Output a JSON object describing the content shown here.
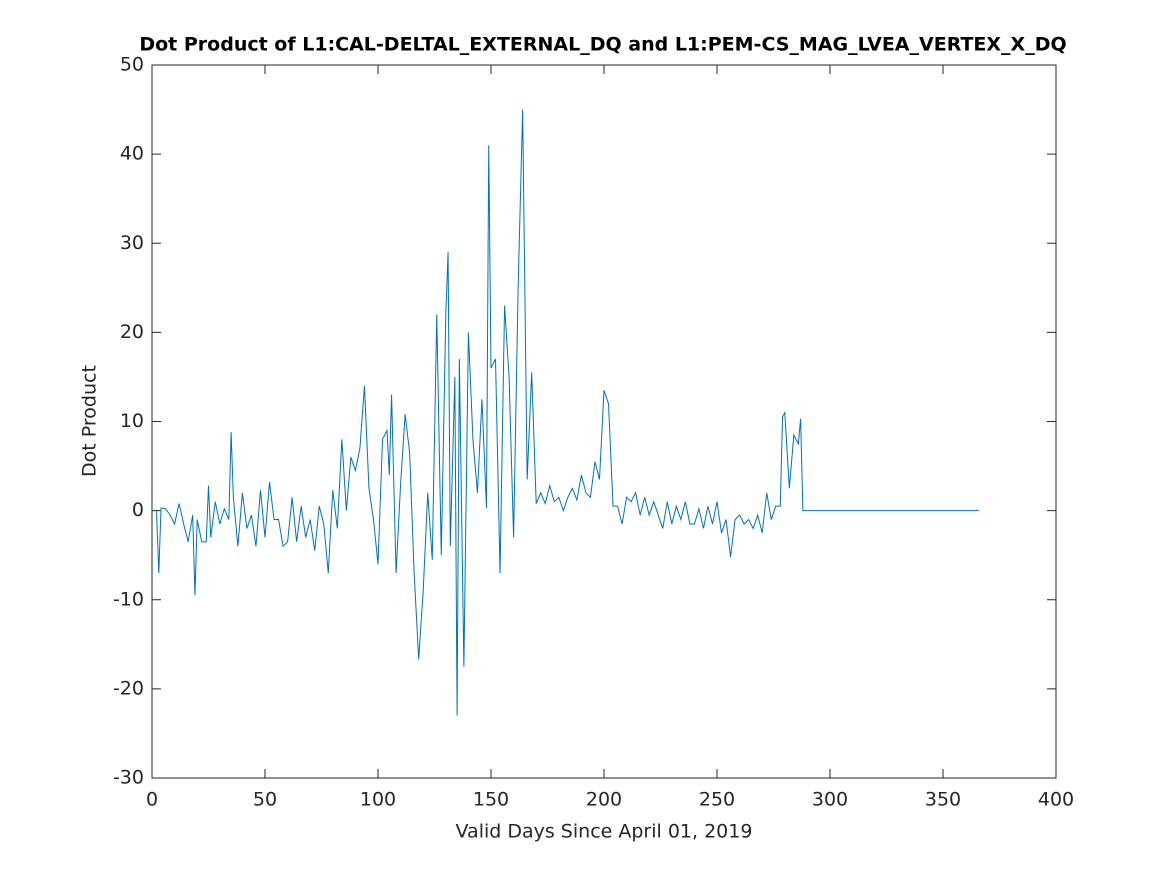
{
  "chart_data": {
    "type": "line",
    "title": "Dot Product of L1:CAL-DELTAL_EXTERNAL_DQ and L1:PEM-CS_MAG_LVEA_VERTEX_X_DQ",
    "xlabel": "Valid Days Since April 01, 2019",
    "ylabel": "Dot Product",
    "xlim": [
      0,
      400
    ],
    "xticks": [
      0,
      50,
      100,
      150,
      200,
      250,
      300,
      350,
      400
    ],
    "ylim": [
      -30,
      50
    ],
    "yticks": [
      -30,
      -20,
      -10,
      0,
      10,
      20,
      30,
      40,
      50
    ],
    "grid": false,
    "series": [
      {
        "color": "#0072bd",
        "x": [
          1,
          2,
          3,
          4,
          6,
          8,
          10,
          12,
          14,
          16,
          18,
          19,
          20,
          22,
          24,
          25,
          26,
          28,
          30,
          32,
          34,
          35,
          36,
          38,
          40,
          42,
          44,
          46,
          48,
          50,
          52,
          54,
          56,
          58,
          60,
          62,
          64,
          66,
          68,
          70,
          72,
          74,
          76,
          78,
          80,
          82,
          84,
          86,
          88,
          90,
          92,
          94,
          96,
          98,
          100,
          102,
          104,
          105,
          106,
          108,
          110,
          112,
          114,
          116,
          118,
          120,
          122,
          124,
          126,
          128,
          130,
          131,
          132,
          134,
          135,
          136,
          138,
          140,
          142,
          144,
          146,
          148,
          149,
          150,
          152,
          154,
          156,
          158,
          160,
          162,
          164,
          166,
          168,
          170,
          172,
          174,
          176,
          178,
          180,
          182,
          184,
          186,
          188,
          190,
          192,
          194,
          196,
          198,
          200,
          202,
          204,
          206,
          208,
          210,
          212,
          214,
          216,
          218,
          220,
          222,
          224,
          226,
          228,
          230,
          232,
          234,
          236,
          238,
          240,
          242,
          244,
          246,
          248,
          250,
          252,
          254,
          256,
          258,
          260,
          262,
          264,
          266,
          268,
          270,
          272,
          274,
          276,
          278,
          279,
          280,
          282,
          284,
          286,
          287,
          288,
          366
        ],
        "values": [
          0,
          0,
          -7,
          0.3,
          0.2,
          -0.5,
          -1.5,
          0.8,
          -1.5,
          -3.5,
          -0.5,
          -9.5,
          -1,
          -3.5,
          -3.5,
          2.8,
          -3,
          1,
          -1.5,
          0.2,
          -1,
          8.8,
          1.5,
          -4,
          2,
          -2,
          -0.5,
          -4,
          2.3,
          -3,
          3.2,
          -1,
          -1,
          -4,
          -3.5,
          1.5,
          -3.5,
          0.5,
          -3,
          -1,
          -4.5,
          0.5,
          -1.5,
          -7,
          2.3,
          -2,
          8,
          0,
          6,
          4.5,
          7,
          14,
          2.5,
          -1,
          -6,
          8,
          9,
          4,
          13,
          -7,
          3,
          10.8,
          6.5,
          -7,
          -16.7,
          -9,
          2,
          -5.5,
          22,
          -5,
          22,
          29,
          -4,
          15,
          -23,
          17,
          -17.5,
          20,
          8,
          2,
          12.5,
          0.3,
          41,
          16,
          17,
          -7,
          23,
          15,
          -3,
          25,
          45,
          3.5,
          15.5,
          0.8,
          2,
          0.8,
          2.8,
          1,
          1.5,
          0,
          1.5,
          2.5,
          1.2,
          4,
          2,
          1.5,
          5.5,
          3.5,
          13.5,
          12,
          0.5,
          0.5,
          -1.5,
          1.5,
          1,
          2,
          -0.5,
          1.5,
          -0.5,
          1,
          -0.5,
          -2,
          1,
          -1.5,
          0.5,
          -1,
          1,
          -1.5,
          -1.5,
          0.2,
          -2,
          0.5,
          -1.5,
          1,
          -2.5,
          -1,
          -5.2,
          -1,
          -0.5,
          -1.5,
          -1,
          -2,
          -0.5,
          -2.5,
          2,
          -1,
          0.5,
          0.5,
          10.5,
          11,
          2.5,
          8.5,
          7.5,
          10.3,
          0,
          0
        ]
      }
    ]
  }
}
